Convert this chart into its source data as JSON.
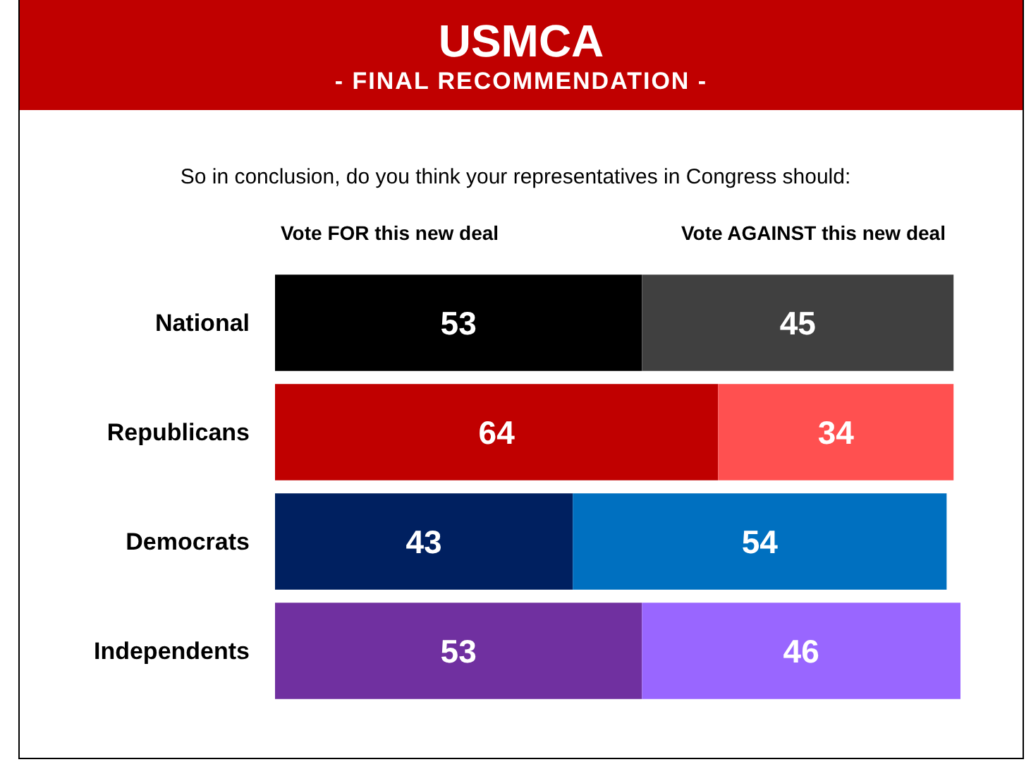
{
  "chart_data": {
    "type": "bar",
    "title": "USMCA",
    "subtitle": "- FINAL RECOMMENDATION -",
    "annotations": [
      "So in conclusion, do you think your representatives in Congress should:"
    ],
    "orientation": "horizontal",
    "stacked": true,
    "data_labels": true,
    "categories": [
      "National",
      "Republicans",
      "Democrats",
      "Independents"
    ],
    "series": [
      {
        "name": "Vote FOR this new deal",
        "colors": [
          "#000000",
          "#c00000",
          "#002060",
          "#7030a0"
        ],
        "values": [
          53,
          64,
          43,
          53
        ]
      },
      {
        "name": "Vote AGAINST this new deal",
        "colors": [
          "#404040",
          "#ff5050",
          "#0070c0",
          "#9966ff"
        ],
        "values": [
          45,
          34,
          54,
          46
        ]
      }
    ]
  }
}
